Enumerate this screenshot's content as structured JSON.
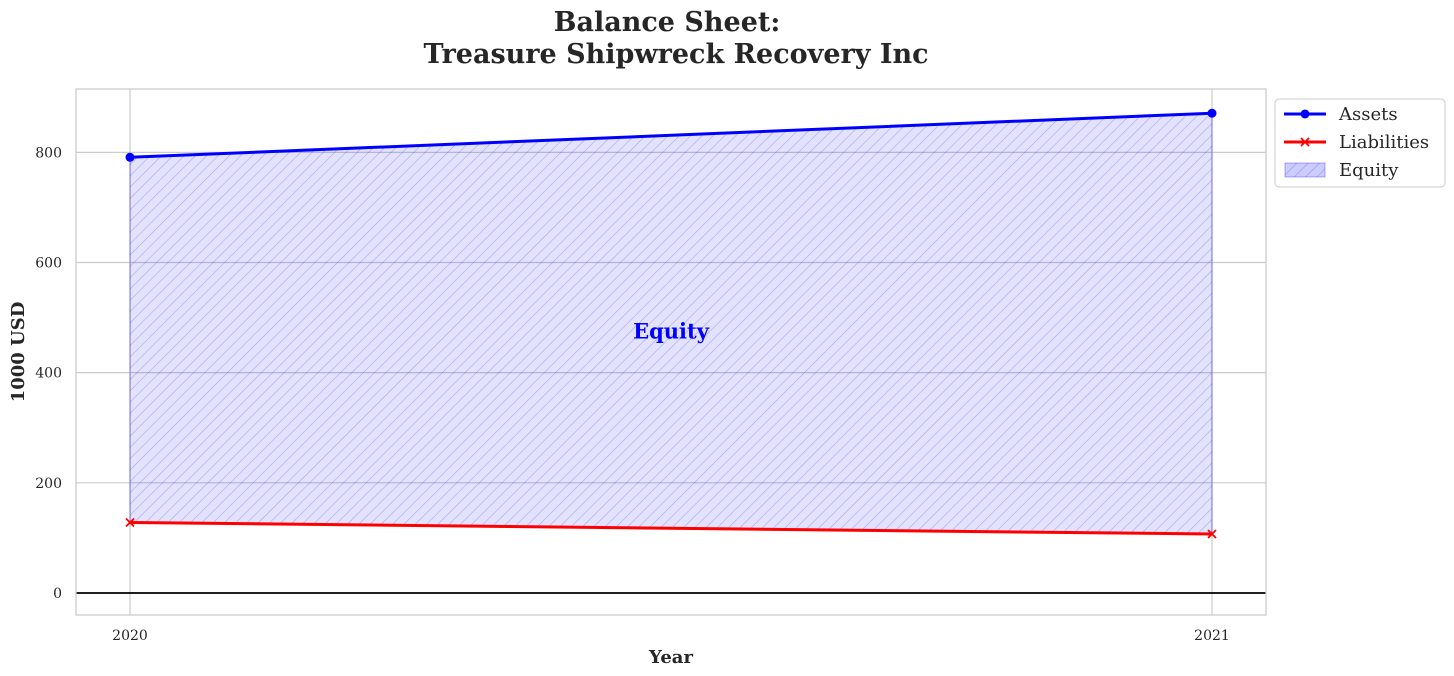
{
  "chart_data": {
    "type": "area",
    "title_line1": "Balance Sheet:",
    "title_line2": "Treasure Shipwreck Recovery Inc",
    "xlabel": "Year",
    "ylabel": "1000 USD",
    "categories": [
      "2020",
      "2021"
    ],
    "series": [
      {
        "name": "Assets",
        "values": [
          791,
          871
        ],
        "color": "#0000ff",
        "marker": "circle"
      },
      {
        "name": "Liabilities",
        "values": [
          128,
          107
        ],
        "color": "#ff0000",
        "marker": "x"
      }
    ],
    "fill": {
      "name": "Equity",
      "between": [
        "Assets",
        "Liabilities"
      ],
      "color": "#0000ff",
      "hatch": true
    },
    "annotation": {
      "text": "Equity",
      "x": 0.5,
      "y": 475,
      "color": "#0000ff"
    },
    "ylim": [
      -40,
      915
    ],
    "yticks": [
      0,
      200,
      400,
      600,
      800
    ],
    "zero_line": true,
    "grid": true,
    "legend_position": "upper right outside"
  }
}
